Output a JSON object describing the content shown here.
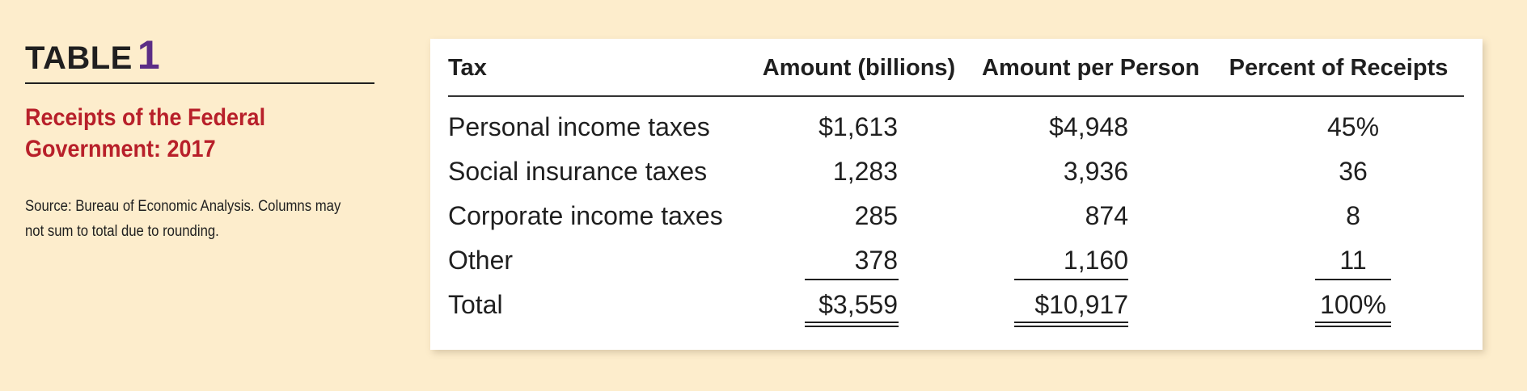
{
  "sidebar": {
    "table_word": "TABLE",
    "table_number": "1",
    "caption_line1": "Receipts of the Federal",
    "caption_line2": "Government: 2017",
    "source_line1": "Source: Bureau of Economic Analysis. Columns may",
    "source_line2": "not sum to total due to rounding."
  },
  "colors": {
    "background": "#fdedcc",
    "caption": "#b8202a",
    "table_number": "#5b2d86",
    "card": "#ffffff"
  },
  "table": {
    "headers": [
      "Tax",
      "Amount (billions)",
      "Amount per Person",
      "Percent of Receipts"
    ],
    "rows": [
      [
        "Personal income taxes",
        "$1,613",
        "$4,948",
        "45%"
      ],
      [
        "Social insurance taxes",
        "1,283",
        "3,936",
        "36"
      ],
      [
        "Corporate income taxes",
        "285",
        "874",
        "8"
      ],
      [
        "Other",
        "378",
        "1,160",
        "11"
      ],
      [
        "Total",
        "$3,559",
        "$10,917",
        "100%"
      ]
    ]
  }
}
